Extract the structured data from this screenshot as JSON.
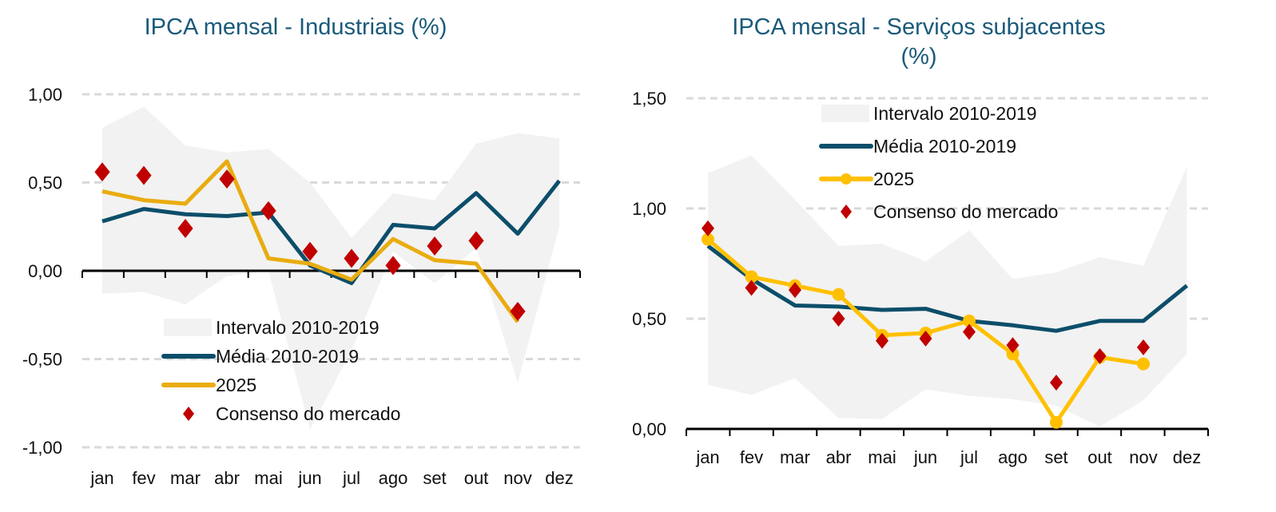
{
  "colors": {
    "band": "#f2f2f2",
    "media": "#0c4e6a",
    "series2025_left": "#e9ac10",
    "series2025_right": "#ffc000",
    "consenso": "#c00000",
    "grid": "#d9d9d9",
    "title": "#1a5a7a"
  },
  "chart_data": [
    {
      "type": "line",
      "title": "IPCA mensal - Industriais (%)",
      "categories": [
        "jan",
        "fev",
        "mar",
        "abr",
        "mai",
        "jun",
        "jul",
        "ago",
        "set",
        "out",
        "nov",
        "dez"
      ],
      "yticks": [
        "1,00",
        "0,50",
        "0,00",
        "-0,50",
        "-1,00"
      ],
      "ytick_values": [
        1,
        0.5,
        0,
        -0.5,
        -1
      ],
      "ylim": [
        -1,
        1
      ],
      "grid": true,
      "legend_position": "bottom-center",
      "band": {
        "name": "Intervalo 2010-2019",
        "upper": [
          0.81,
          0.93,
          0.71,
          0.67,
          0.69,
          0.5,
          0.185,
          0.44,
          0.4,
          0.72,
          0.78,
          0.75
        ],
        "lower": [
          -0.13,
          -0.12,
          -0.19,
          -0.03,
          0.0,
          -0.9,
          -0.45,
          0.11,
          -0.07,
          0.13,
          -0.635,
          0.25
        ]
      },
      "series": [
        {
          "name": "Média 2010-2019",
          "values": [
            0.28,
            0.35,
            0.32,
            0.31,
            0.33,
            0.03,
            -0.07,
            0.26,
            0.24,
            0.44,
            0.21,
            0.51
          ]
        },
        {
          "name": "2025",
          "values": [
            0.45,
            0.4,
            0.38,
            0.62,
            0.07,
            0.04,
            -0.05,
            0.18,
            0.06,
            0.04,
            -0.29,
            null
          ]
        },
        {
          "name": "Consenso do mercado",
          "values": [
            0.56,
            0.54,
            0.24,
            0.52,
            0.34,
            0.11,
            0.07,
            0.03,
            0.14,
            0.17,
            -0.23,
            null
          ]
        }
      ]
    },
    {
      "type": "line",
      "title": "IPCA mensal - Serviços subjacentes (%)",
      "title_lines": [
        "IPCA mensal - Serviços subjacentes",
        "(%)"
      ],
      "categories": [
        "jan",
        "fev",
        "mar",
        "abr",
        "mai",
        "jun",
        "jul",
        "ago",
        "set",
        "out",
        "nov",
        "dez"
      ],
      "yticks": [
        "1,50",
        "1,00",
        "0,50",
        "0,00"
      ],
      "ytick_values": [
        1.5,
        1,
        0.5,
        0
      ],
      "ylim": [
        0,
        1.5
      ],
      "grid": true,
      "legend_position": "top-center",
      "band": {
        "name": "Intervalo 2010-2019",
        "upper": [
          1.16,
          1.24,
          1.04,
          0.83,
          0.84,
          0.76,
          0.9,
          0.68,
          0.71,
          0.78,
          0.74,
          1.19
        ],
        "lower": [
          0.2,
          0.155,
          0.23,
          0.05,
          0.045,
          0.18,
          0.15,
          0.135,
          0.105,
          0.01,
          0.13,
          0.34
        ]
      },
      "series": [
        {
          "name": "Média 2010-2019",
          "values": [
            0.83,
            0.68,
            0.56,
            0.555,
            0.54,
            0.545,
            0.49,
            0.47,
            0.445,
            0.49,
            0.49,
            0.65
          ]
        },
        {
          "name": "2025",
          "values": [
            0.86,
            0.69,
            0.65,
            0.61,
            0.425,
            0.435,
            0.49,
            0.34,
            0.03,
            0.325,
            0.295,
            null
          ]
        },
        {
          "name": "Consenso do mercado",
          "values": [
            0.91,
            0.64,
            0.63,
            0.5,
            0.4,
            0.41,
            0.44,
            0.38,
            0.21,
            0.33,
            0.37,
            null
          ]
        }
      ]
    }
  ]
}
